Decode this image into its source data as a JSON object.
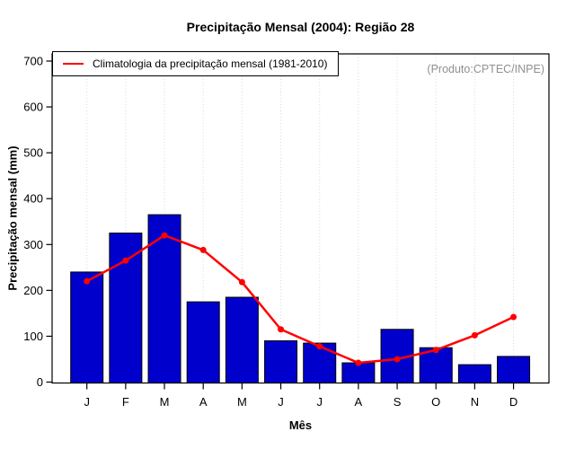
{
  "title": "Precipitação Mensal (2004): Região 28",
  "annotation": "(Produto:CPTEC/INPE)",
  "legend": {
    "label": "Climatologia da precipitação mensal (1981-2010)",
    "line_color": "#ff0000",
    "position": "top-left"
  },
  "axes": {
    "xlabel": "Mês",
    "ylabel": "Precipitação mensal (mm)",
    "yticks": [
      0,
      100,
      200,
      300,
      400,
      500,
      600,
      700
    ]
  },
  "colors": {
    "bar_fill": "#0000cd",
    "bar_border": "#000000",
    "line": "#ff0000",
    "grid": "#d9d9d9",
    "axis": "#000000",
    "annotation_text": "#909090"
  },
  "chart_data": {
    "type": "bar",
    "title": "Precipitação Mensal (2004): Região 28",
    "xlabel": "Mês",
    "ylabel": "Precipitação mensal (mm)",
    "ylim": [
      0,
      700
    ],
    "grid": "vertical-dotted",
    "legend_position": "top-left",
    "annotation": "(Produto:CPTEC/INPE)",
    "categories": [
      "J",
      "F",
      "M",
      "A",
      "M",
      "J",
      "J",
      "A",
      "S",
      "O",
      "N",
      "D"
    ],
    "series": [
      {
        "name": "Precipitação mensal 2004",
        "type": "bar",
        "values": [
          240,
          325,
          365,
          175,
          185,
          90,
          85,
          42,
          115,
          75,
          38,
          56
        ]
      },
      {
        "name": "Climatologia da precipitação mensal (1981-2010)",
        "type": "line",
        "values": [
          220,
          265,
          320,
          288,
          218,
          115,
          78,
          42,
          50,
          70,
          102,
          142
        ]
      }
    ]
  }
}
